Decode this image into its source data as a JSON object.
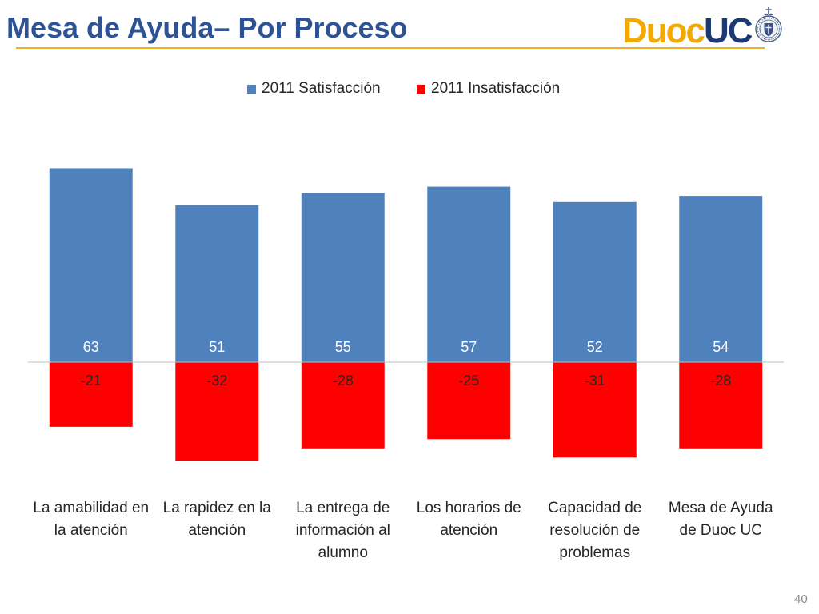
{
  "slide": {
    "title": "Mesa de Ayuda– Por Proceso",
    "page_number": "40",
    "title_color": "#2e5395",
    "accent_line_color": "#f0b323"
  },
  "logo": {
    "word1": "Duoc",
    "word2": "UC",
    "word1_color": "#f2a900",
    "word2_color": "#1b3a73",
    "seal_icon": "university-seal-icon"
  },
  "chart_data": {
    "type": "bar",
    "stacked": true,
    "categories": [
      "La amabilidad en la atención",
      "La rapidez en la atención",
      "La entrega de información al alumno",
      "Los horarios de atención",
      "Capacidad de resolución de problemas",
      "Mesa de Ayuda de Duoc UC"
    ],
    "series": [
      {
        "name": "2011 Satisfacción",
        "color": "#4f81bd",
        "values": [
          63,
          51,
          55,
          57,
          52,
          54
        ]
      },
      {
        "name": "2011 Insatisfacción",
        "color": "#ff0000",
        "values": [
          -21,
          -32,
          -28,
          -25,
          -31,
          -28
        ]
      }
    ],
    "ylim": [
      -40,
      70
    ],
    "y_axis_visible": false,
    "grid": false,
    "legend": "top-center",
    "data_labels": true
  }
}
